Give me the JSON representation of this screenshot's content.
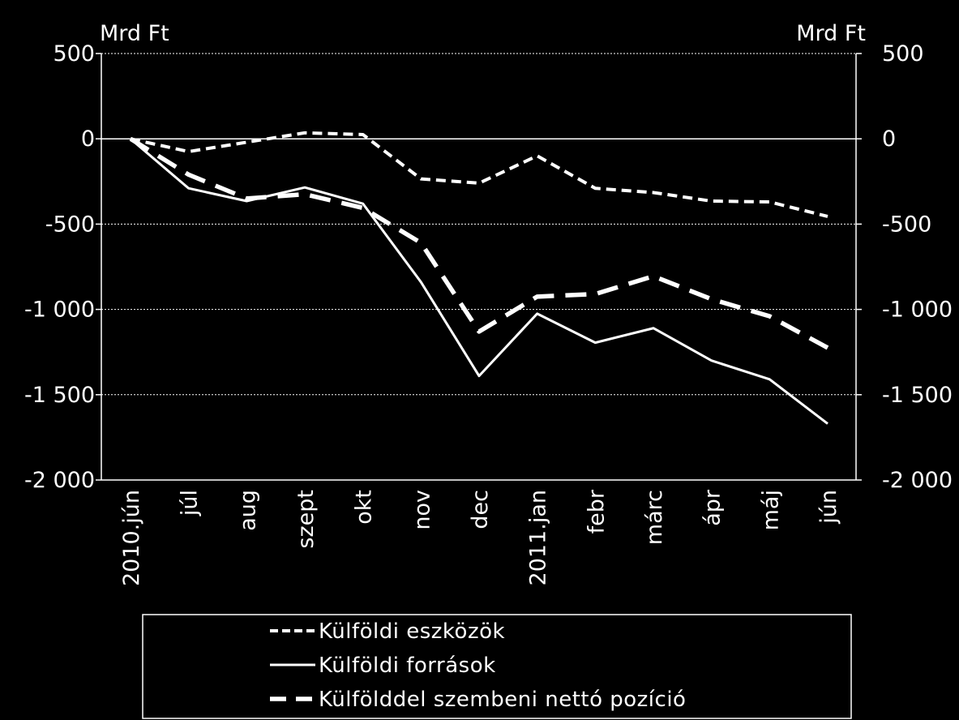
{
  "chart_data": {
    "type": "line",
    "y_unit_left": "Mrd Ft",
    "y_unit_right": "Mrd Ft",
    "categories": [
      "2010.jún",
      "júl",
      "aug",
      "szept",
      "okt",
      "nov",
      "dec",
      "2011.jan",
      "febr",
      "márc",
      "ápr",
      "máj",
      "jún"
    ],
    "ylim": [
      -2000,
      500
    ],
    "yticks": [
      500,
      0,
      -500,
      -1000,
      -1500,
      -2000
    ],
    "ytick_labels": [
      "500",
      "0",
      "-500",
      "-1 000",
      "-1 500",
      "-2 000"
    ],
    "grid": "horizontal dotted",
    "legend_position": "bottom",
    "series": [
      {
        "name": "Külföldi eszközök",
        "style": "dashed",
        "values": [
          0,
          -75,
          -20,
          35,
          25,
          -235,
          -260,
          -100,
          -290,
          -315,
          -365,
          -370,
          -455
        ]
      },
      {
        "name": "Külföldi források",
        "style": "solid",
        "values": [
          0,
          -290,
          -365,
          -285,
          -380,
          -840,
          -1390,
          -1025,
          -1195,
          -1110,
          -1300,
          -1410,
          -1670
        ]
      },
      {
        "name": "Külfölddel szembeni nettó pozíció",
        "style": "long-dashed",
        "values": [
          0,
          -210,
          -350,
          -325,
          -405,
          -610,
          -1130,
          -925,
          -910,
          -805,
          -940,
          -1040,
          -1225
        ]
      }
    ],
    "colors": {
      "background": "#000000",
      "foreground": "#ffffff"
    }
  }
}
